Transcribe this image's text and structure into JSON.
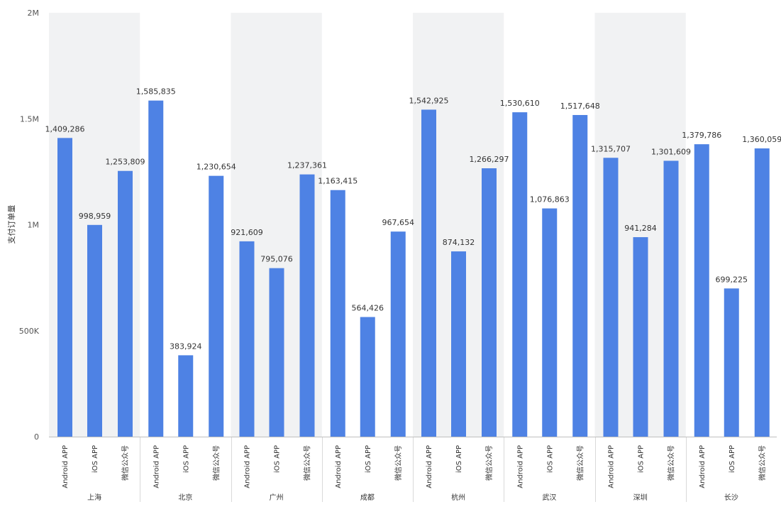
{
  "chart_data": {
    "type": "bar",
    "ylabel": "支付订单量",
    "ylim": [
      0,
      2000000
    ],
    "y_ticks": [
      0,
      500000,
      1000000,
      1500000,
      2000000
    ],
    "y_tick_labels": [
      "0",
      "500K",
      "1M",
      "1.5M",
      "2M"
    ],
    "grid": false,
    "legend": "none",
    "bar_color": "#4E82E4",
    "band_color": "#F1F2F3",
    "groups": [
      {
        "name": "上海",
        "categories": [
          "Android APP",
          "iOS APP",
          "微信公众号"
        ],
        "values": [
          1409286,
          998959,
          1253809
        ],
        "labels": [
          "1,409,286",
          "998,959",
          "1,253,809"
        ]
      },
      {
        "name": "北京",
        "categories": [
          "Android APP",
          "iOS APP",
          "微信公众号"
        ],
        "values": [
          1585835,
          383924,
          1230654
        ],
        "labels": [
          "1,585,835",
          "383,924",
          "1,230,654"
        ]
      },
      {
        "name": "广州",
        "categories": [
          "Android APP",
          "iOS APP",
          "微信公众号"
        ],
        "values": [
          921609,
          795076,
          1237361
        ],
        "labels": [
          "921,609",
          "795,076",
          "1,237,361"
        ]
      },
      {
        "name": "成都",
        "categories": [
          "Android APP",
          "iOS APP",
          "微信公众号"
        ],
        "values": [
          1163415,
          564426,
          967654
        ],
        "labels": [
          "1,163,415",
          "564,426",
          "967,654"
        ]
      },
      {
        "name": "杭州",
        "categories": [
          "Android APP",
          "iOS APP",
          "微信公众号"
        ],
        "values": [
          1542925,
          874132,
          1266297
        ],
        "labels": [
          "1,542,925",
          "874,132",
          "1,266,297"
        ]
      },
      {
        "name": "武汉",
        "categories": [
          "Android APP",
          "iOS APP",
          "微信公众号"
        ],
        "values": [
          1530610,
          1076863,
          1517648
        ],
        "labels": [
          "1,530,610",
          "1,076,863",
          "1,517,648"
        ]
      },
      {
        "name": "深圳",
        "categories": [
          "Android APP",
          "iOS APP",
          "微信公众号"
        ],
        "values": [
          1315707,
          941284,
          1301609
        ],
        "labels": [
          "1,315,707",
          "941,284",
          "1,301,609"
        ]
      },
      {
        "name": "长沙",
        "categories": [
          "Android APP",
          "iOS APP",
          "微信公众号"
        ],
        "values": [
          1379786,
          699225,
          1360059
        ],
        "labels": [
          "1,379,786",
          "699,225",
          "1,360,059"
        ]
      }
    ]
  }
}
